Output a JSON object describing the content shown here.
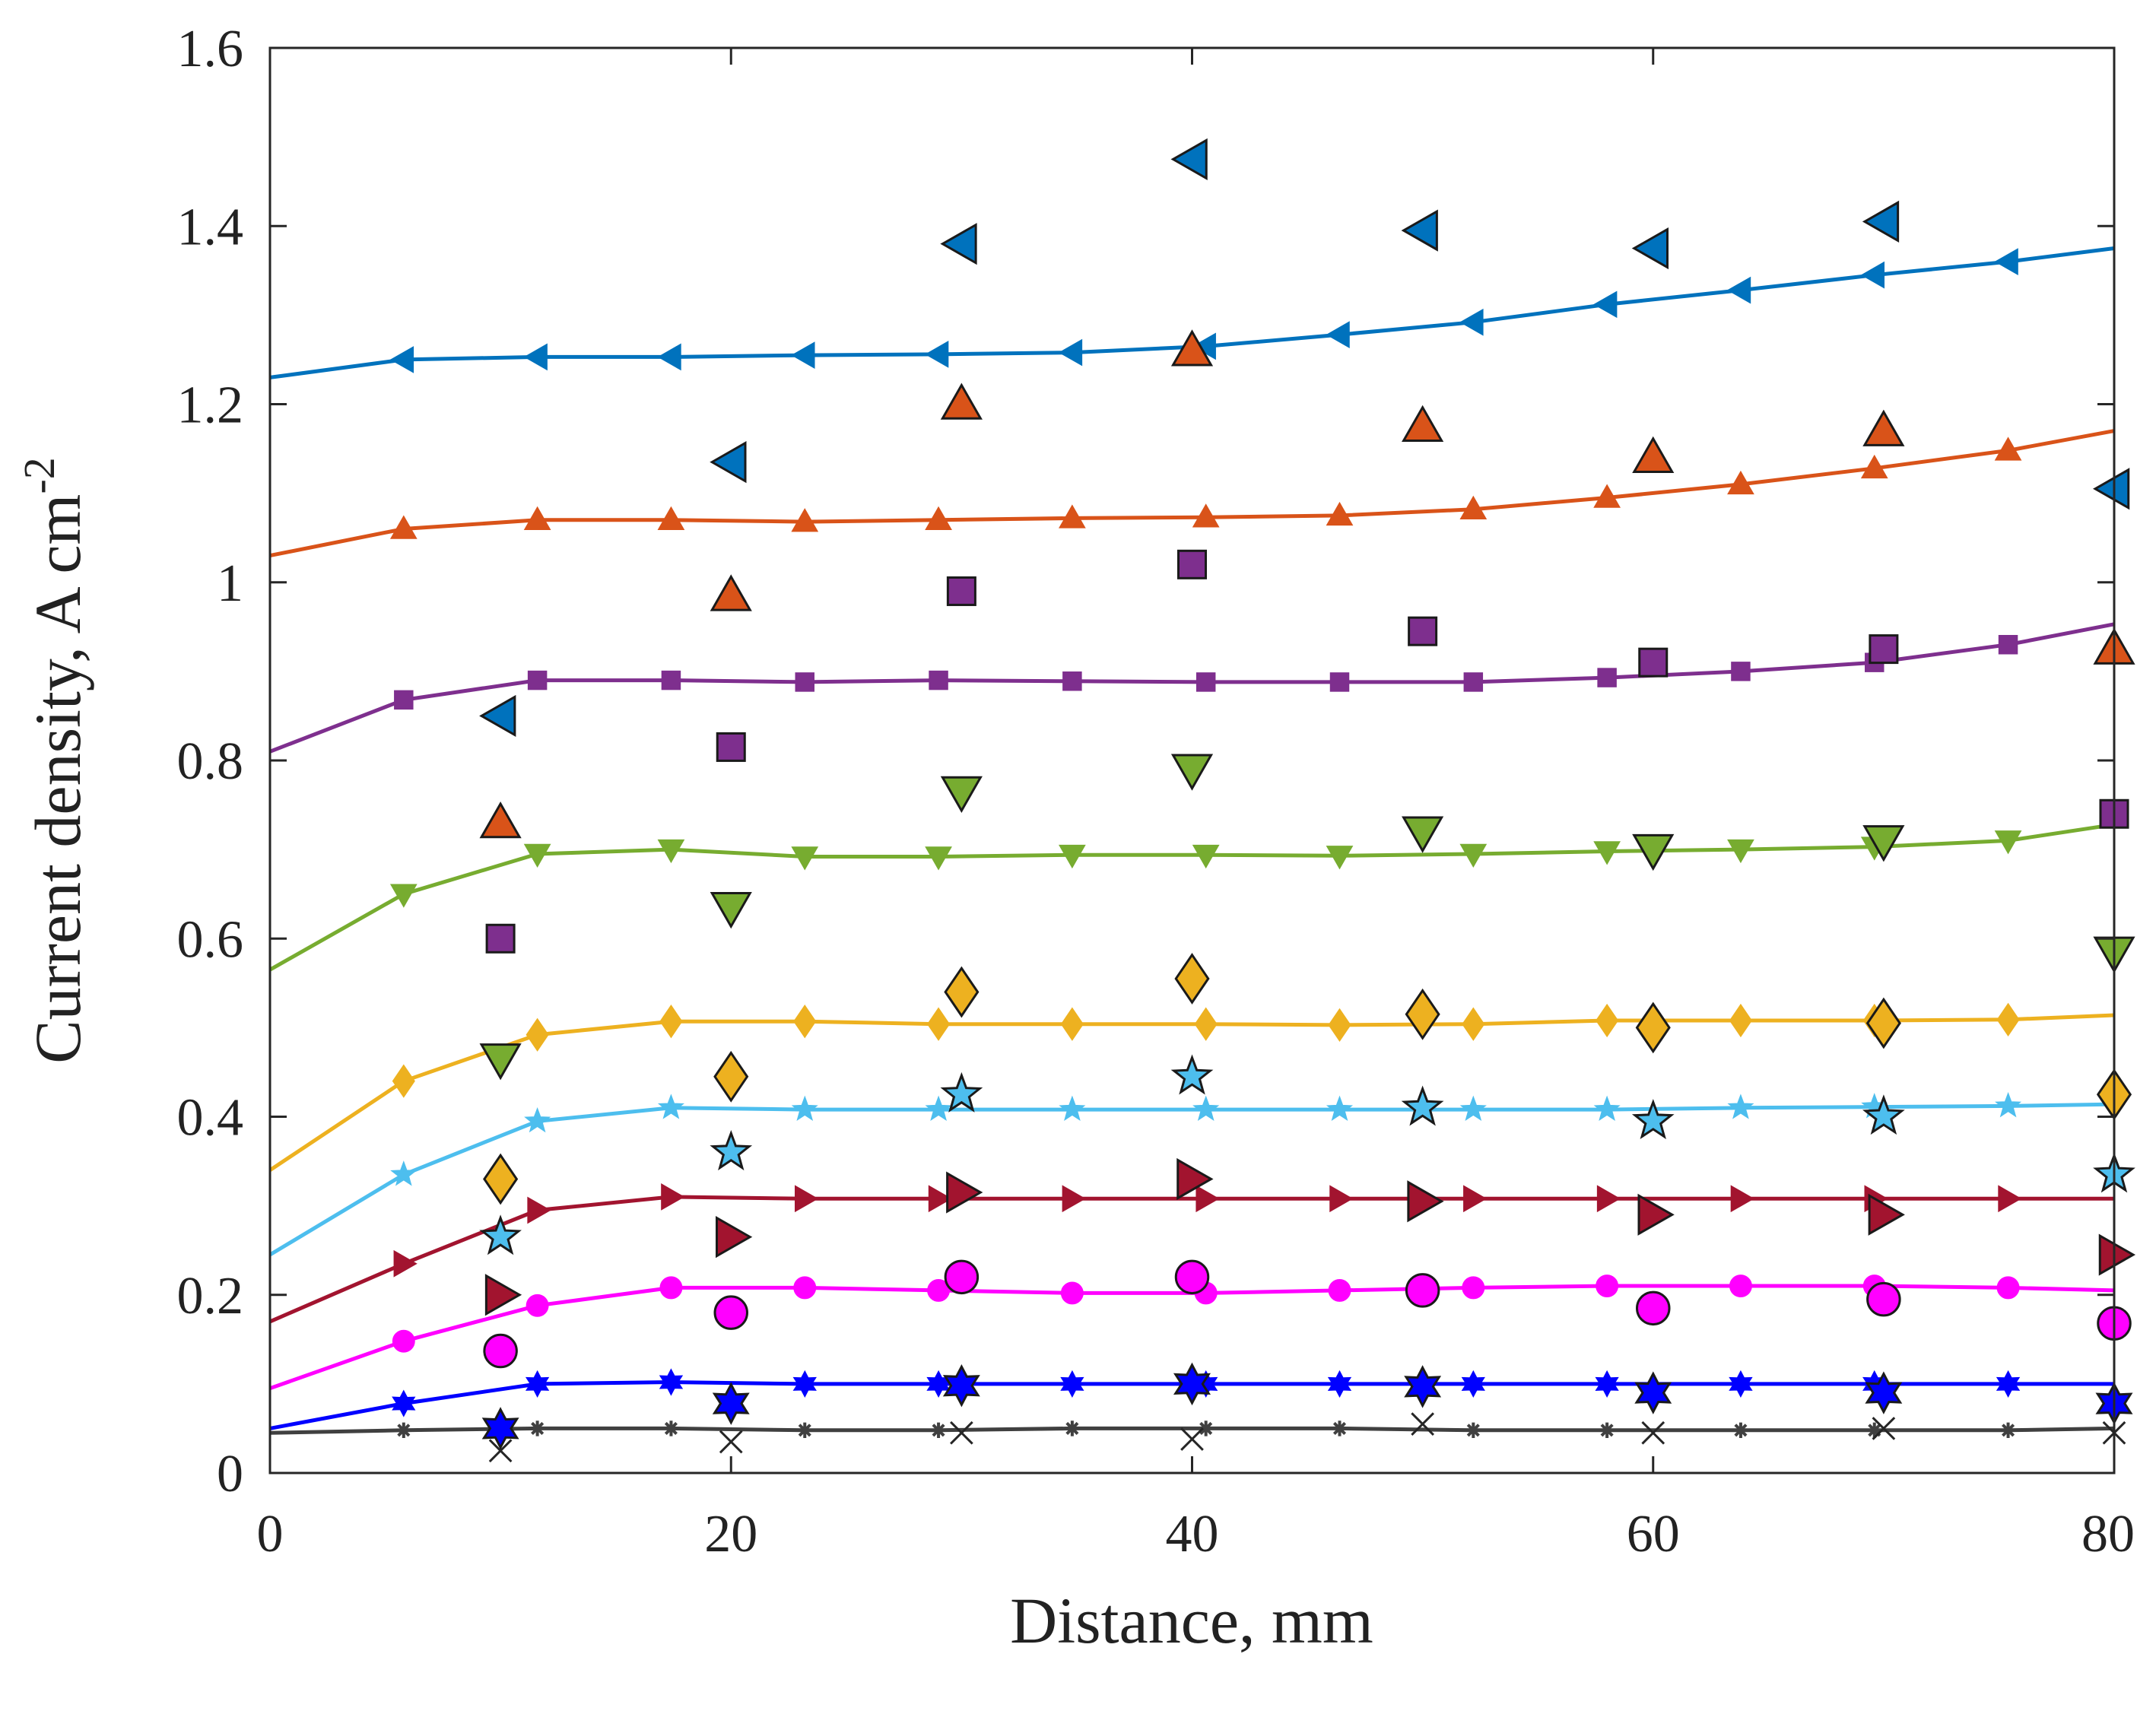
{
  "chart_data": {
    "type": "line",
    "title": "",
    "xlabel": "Distance, mm",
    "ylabel_main": "Current density, A cm",
    "ylabel_sup": "-2",
    "xlim": [
      0,
      80
    ],
    "ylim": [
      0,
      1.6
    ],
    "xticks": [
      0,
      20,
      40,
      60,
      80
    ],
    "xtick_labels": [
      "0",
      "20",
      "40",
      "60",
      "80"
    ],
    "yticks": [
      0,
      0.2,
      0.4,
      0.6,
      0.8,
      1,
      1.2,
      1.4,
      1.6
    ],
    "ytick_labels": [
      "0",
      "0.2",
      "0.4",
      "0.6",
      "0.8",
      "1",
      "1.2",
      "1.4",
      "1.6"
    ],
    "grid": false,
    "legend": "none",
    "model_series": [
      {
        "name": "series-1",
        "color": "#0072BD",
        "marker": "triangle-left",
        "x": [
          0,
          5.8,
          11.6,
          17.4,
          23.2,
          29,
          34.8,
          40.6,
          46.4,
          52.2,
          58,
          63.8,
          69.6,
          75.4,
          80
        ],
        "y": [
          1.23,
          1.25,
          1.253,
          1.253,
          1.255,
          1.256,
          1.258,
          1.265,
          1.278,
          1.292,
          1.312,
          1.328,
          1.345,
          1.36,
          1.375
        ]
      },
      {
        "name": "series-2",
        "color": "#D95319",
        "marker": "triangle-up",
        "x": [
          0,
          5.8,
          11.6,
          17.4,
          23.2,
          29,
          34.8,
          40.6,
          46.4,
          52.2,
          58,
          63.8,
          69.6,
          75.4,
          80
        ],
        "y": [
          1.03,
          1.06,
          1.07,
          1.07,
          1.068,
          1.07,
          1.072,
          1.073,
          1.075,
          1.082,
          1.095,
          1.11,
          1.128,
          1.148,
          1.17
        ]
      },
      {
        "name": "series-3",
        "color": "#7E2F8E",
        "marker": "square",
        "x": [
          0,
          5.8,
          11.6,
          17.4,
          23.2,
          29,
          34.8,
          40.6,
          46.4,
          52.2,
          58,
          63.8,
          69.6,
          75.4,
          80
        ],
        "y": [
          0.81,
          0.868,
          0.89,
          0.89,
          0.888,
          0.89,
          0.889,
          0.888,
          0.888,
          0.888,
          0.893,
          0.9,
          0.91,
          0.93,
          0.953
        ]
      },
      {
        "name": "series-4",
        "color": "#77AC30",
        "marker": "triangle-down",
        "x": [
          0,
          5.8,
          11.6,
          17.4,
          23.2,
          29,
          34.8,
          40.6,
          46.4,
          52.2,
          58,
          63.8,
          69.6,
          75.4,
          80
        ],
        "y": [
          0.565,
          0.65,
          0.695,
          0.7,
          0.692,
          0.692,
          0.694,
          0.694,
          0.693,
          0.695,
          0.698,
          0.7,
          0.703,
          0.71,
          0.728
        ]
      },
      {
        "name": "series-5",
        "color": "#EDB120",
        "marker": "diamond",
        "x": [
          0,
          5.8,
          11.6,
          17.4,
          23.2,
          29,
          34.8,
          40.6,
          46.4,
          52.2,
          58,
          63.8,
          69.6,
          75.4,
          80
        ],
        "y": [
          0.34,
          0.44,
          0.492,
          0.507,
          0.507,
          0.504,
          0.504,
          0.504,
          0.503,
          0.504,
          0.508,
          0.508,
          0.508,
          0.509,
          0.514
        ]
      },
      {
        "name": "series-6",
        "color": "#4DBEEE",
        "marker": "star",
        "x": [
          0,
          5.8,
          11.6,
          17.4,
          23.2,
          29,
          34.8,
          40.6,
          46.4,
          52.2,
          58,
          63.8,
          69.6,
          75.4,
          80
        ],
        "y": [
          0.245,
          0.335,
          0.395,
          0.41,
          0.408,
          0.408,
          0.408,
          0.408,
          0.408,
          0.408,
          0.408,
          0.41,
          0.411,
          0.412,
          0.414
        ]
      },
      {
        "name": "series-7",
        "color": "#A2142F",
        "marker": "triangle-right",
        "x": [
          0,
          5.8,
          11.6,
          17.4,
          23.2,
          29,
          34.8,
          40.6,
          46.4,
          52.2,
          58,
          63.8,
          69.6,
          75.4,
          80
        ],
        "y": [
          0.17,
          0.235,
          0.295,
          0.31,
          0.308,
          0.308,
          0.308,
          0.308,
          0.308,
          0.308,
          0.308,
          0.308,
          0.308,
          0.308,
          0.308
        ]
      },
      {
        "name": "series-8",
        "color": "#FF00FF",
        "marker": "circle",
        "x": [
          0,
          5.8,
          11.6,
          17.4,
          23.2,
          29,
          34.8,
          40.6,
          46.4,
          52.2,
          58,
          63.8,
          69.6,
          75.4,
          80
        ],
        "y": [
          0.095,
          0.148,
          0.188,
          0.208,
          0.208,
          0.205,
          0.202,
          0.202,
          0.205,
          0.208,
          0.21,
          0.21,
          0.21,
          0.208,
          0.205
        ]
      },
      {
        "name": "series-9",
        "color": "#0000FF",
        "marker": "hexagram",
        "x": [
          0,
          5.8,
          11.6,
          17.4,
          23.2,
          29,
          34.8,
          40.6,
          46.4,
          52.2,
          58,
          63.8,
          69.6,
          75.4,
          80
        ],
        "y": [
          0.05,
          0.078,
          0.1,
          0.102,
          0.1,
          0.1,
          0.1,
          0.1,
          0.1,
          0.1,
          0.1,
          0.1,
          0.1,
          0.1,
          0.1
        ]
      },
      {
        "name": "series-10",
        "color": "#404040",
        "marker": "asterisk",
        "x": [
          0,
          5.8,
          11.6,
          17.4,
          23.2,
          29,
          34.8,
          40.6,
          46.4,
          52.2,
          58,
          63.8,
          69.6,
          75.4,
          80
        ],
        "y": [
          0.045,
          0.048,
          0.05,
          0.05,
          0.048,
          0.048,
          0.05,
          0.05,
          0.05,
          0.048,
          0.048,
          0.048,
          0.048,
          0.048,
          0.05
        ]
      }
    ],
    "measured_series": [
      {
        "name": "measured-1",
        "color": "#0072BD",
        "marker": "triangle-left",
        "x": [
          10,
          20,
          30,
          40,
          50,
          60,
          70,
          80
        ],
        "y": [
          0.85,
          1.135,
          1.38,
          1.475,
          1.395,
          1.375,
          1.405,
          1.105
        ]
      },
      {
        "name": "measured-2",
        "color": "#D95319",
        "marker": "triangle-up",
        "x": [
          10,
          20,
          30,
          40,
          50,
          60,
          70,
          80
        ],
        "y": [
          0.73,
          0.985,
          1.2,
          1.26,
          1.175,
          1.14,
          1.17,
          0.925
        ]
      },
      {
        "name": "measured-3",
        "color": "#7E2F8E",
        "marker": "square",
        "x": [
          10,
          20,
          30,
          40,
          50,
          60,
          70,
          80
        ],
        "y": [
          0.6,
          0.815,
          0.99,
          1.02,
          0.945,
          0.91,
          0.925,
          0.74
        ]
      },
      {
        "name": "measured-4",
        "color": "#77AC30",
        "marker": "triangle-down",
        "x": [
          10,
          20,
          30,
          40,
          50,
          60,
          70,
          80
        ],
        "y": [
          0.465,
          0.635,
          0.765,
          0.79,
          0.72,
          0.7,
          0.71,
          0.585
        ]
      },
      {
        "name": "measured-5",
        "color": "#EDB120",
        "marker": "diamond",
        "x": [
          10,
          20,
          30,
          40,
          50,
          60,
          70,
          80
        ],
        "y": [
          0.33,
          0.445,
          0.54,
          0.555,
          0.515,
          0.5,
          0.505,
          0.425
        ]
      },
      {
        "name": "measured-6",
        "color": "#4DBEEE",
        "marker": "star",
        "x": [
          10,
          20,
          30,
          40,
          50,
          60,
          70,
          80
        ],
        "y": [
          0.265,
          0.36,
          0.425,
          0.445,
          0.41,
          0.395,
          0.4,
          0.335
        ]
      },
      {
        "name": "measured-7",
        "color": "#A2142F",
        "marker": "triangle-right",
        "x": [
          10,
          20,
          30,
          40,
          50,
          60,
          70,
          80
        ],
        "y": [
          0.2,
          0.265,
          0.315,
          0.33,
          0.305,
          0.29,
          0.29,
          0.245
        ]
      },
      {
        "name": "measured-8",
        "color": "#FF00FF",
        "marker": "circle",
        "x": [
          10,
          20,
          30,
          40,
          50,
          60,
          70,
          80
        ],
        "y": [
          0.137,
          0.18,
          0.22,
          0.22,
          0.205,
          0.185,
          0.195,
          0.168
        ]
      },
      {
        "name": "measured-9",
        "color": "#0000FF",
        "marker": "hexagram",
        "x": [
          10,
          20,
          30,
          40,
          50,
          60,
          70,
          80
        ],
        "y": [
          0.05,
          0.078,
          0.098,
          0.1,
          0.097,
          0.09,
          0.09,
          0.078
        ]
      },
      {
        "name": "measured-10",
        "color": "#404040",
        "marker": "x",
        "x": [
          10,
          20,
          30,
          40,
          50,
          60,
          70,
          80
        ],
        "y": [
          0.025,
          0.035,
          0.045,
          0.038,
          0.055,
          0.045,
          0.05,
          0.045
        ]
      }
    ]
  }
}
